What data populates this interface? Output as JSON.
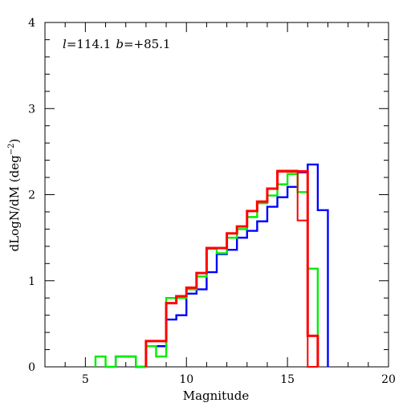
{
  "chart_data": {
    "type": "line",
    "step": true,
    "annotation": {
      "l_symbol": "l",
      "l_value": "=114.1",
      "b_symbol": "b",
      "b_value": "=+85.1"
    },
    "xlabel": "Magnitude",
    "ylabel_main": "dLogN/dM (deg",
    "ylabel_sup": "−2",
    "ylabel_close": ")",
    "xlim": [
      3,
      20
    ],
    "ylim": [
      0,
      4
    ],
    "xticks_major": [
      5,
      10,
      15,
      20
    ],
    "xticks_minor_step": 1,
    "yticks_major": [
      0,
      1,
      2,
      3,
      4
    ],
    "yticks_minor_step": 0.2,
    "grid": false,
    "series": [
      {
        "color": "#0000ff",
        "stroke_width": 2.4,
        "edges": [
          6.5,
          7.0,
          7.5,
          8.0,
          8.5,
          9.0,
          9.5,
          10.0,
          10.5,
          11.0,
          11.5,
          12.0,
          12.5,
          13.0,
          13.5,
          14.0,
          14.5,
          15.0,
          15.5,
          16.0,
          16.5,
          17.0
        ],
        "values": [
          0.12,
          0.12,
          0.0,
          0.24,
          0.24,
          0.55,
          0.6,
          0.85,
          0.9,
          1.1,
          1.31,
          1.36,
          1.5,
          1.58,
          1.69,
          1.86,
          1.97,
          2.09,
          2.26,
          2.35,
          1.82
        ]
      },
      {
        "color": "#00ee00",
        "stroke_width": 2.4,
        "edges": [
          5.5,
          6.0,
          6.5,
          7.0,
          7.5,
          8.0,
          8.5,
          9.0,
          9.5,
          10.0,
          10.5,
          11.0,
          11.5,
          12.0,
          12.5,
          13.0,
          13.5,
          14.0,
          14.5,
          15.0,
          15.5,
          16.0,
          16.5
        ],
        "values": [
          0.12,
          0.0,
          0.12,
          0.12,
          0.0,
          0.24,
          0.12,
          0.8,
          0.8,
          0.9,
          1.05,
          1.37,
          1.32,
          1.5,
          1.6,
          1.74,
          1.9,
          1.99,
          2.12,
          2.24,
          2.03,
          1.14
        ]
      },
      {
        "color": "#ff0000",
        "stroke_width": 2.0,
        "edges": [
          8.0,
          8.5,
          9.0,
          9.5,
          10.0,
          10.5,
          11.0,
          11.5,
          12.0,
          12.5,
          13.0,
          13.5,
          14.0,
          14.5,
          15.0,
          15.5,
          16.0,
          16.5
        ],
        "values": [
          0.3,
          0.3,
          0.74,
          0.82,
          0.92,
          1.09,
          1.38,
          1.38,
          1.55,
          1.63,
          1.81,
          1.92,
          2.07,
          2.28,
          2.28,
          1.7,
          0.0
        ]
      },
      {
        "color": "#ff0000",
        "stroke_width": 3.0,
        "edges": [
          8.0,
          8.5,
          9.0,
          9.5,
          10.0,
          10.5,
          11.0,
          11.5,
          12.0,
          12.5,
          13.0,
          13.5,
          14.0,
          14.5,
          15.0,
          15.5,
          16.0,
          16.5
        ],
        "values": [
          0.3,
          0.3,
          0.74,
          0.82,
          0.92,
          1.09,
          1.38,
          1.38,
          1.55,
          1.63,
          1.81,
          1.92,
          2.07,
          2.27,
          2.27,
          2.27,
          0.36
        ]
      }
    ]
  }
}
